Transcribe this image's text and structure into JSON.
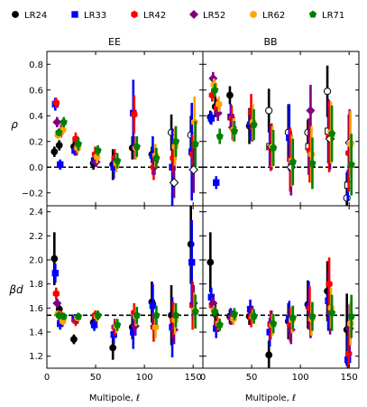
{
  "chart_data": {
    "type": "scatter",
    "x_label": "Multipole, ℓ",
    "x_ticks": [
      0,
      50,
      100,
      150
    ],
    "xlim": [
      0,
      160
    ],
    "legend": {
      "placement": "top",
      "entries": [
        {
          "name": "LR24",
          "color": "#000000",
          "marker": "circle"
        },
        {
          "name": "LR33",
          "color": "#0000ff",
          "marker": "square"
        },
        {
          "name": "LR42",
          "color": "#ff0000",
          "marker": "hexagon"
        },
        {
          "name": "LR52",
          "color": "#800080",
          "marker": "diamond"
        },
        {
          "name": "LR62",
          "color": "#ffa500",
          "marker": "hexagon"
        },
        {
          "name": "LR71",
          "color": "#008000",
          "marker": "pentagon"
        }
      ]
    },
    "columns": [
      "EE",
      "BB"
    ],
    "rows": [
      {
        "y_label": "ρ",
        "ylim": [
          -0.3,
          0.9
        ],
        "y_ticks": [
          "-0.2",
          "0.0",
          "0.2",
          "0.4",
          "0.6",
          "0.8"
        ],
        "reference_line": 0.0
      },
      {
        "y_label": "βd",
        "ylim": [
          1.1,
          2.45
        ],
        "y_ticks": [
          "1.2",
          "1.4",
          "1.6",
          "1.8",
          "2.0",
          "2.2",
          "2.4"
        ],
        "reference_line": 1.54
      }
    ],
    "x_positions": [
      10,
      15,
      30,
      50,
      70,
      90,
      110,
      130,
      150
    ],
    "panels": [
      {
        "panel": "rho-EE",
        "series": [
          {
            "name": "LR24",
            "y": [
              0.12,
              0.17,
              0.16,
              0.03,
              0.02,
              0.15,
              0.1,
              0.27,
              0.25
            ],
            "err": [
              0.04,
              0.04,
              0.05,
              0.05,
              0.12,
              0.09,
              0.06,
              0.14,
              0.15
            ],
            "open": [
              false,
              false,
              false,
              false,
              false,
              false,
              false,
              true,
              true
            ]
          },
          {
            "name": "LR33",
            "y": [
              0.49,
              0.02,
              0.13,
              0.05,
              0.0,
              0.42,
              0.09,
              0.0,
              0.12
            ],
            "err": [
              0.05,
              0.04,
              0.04,
              0.04,
              0.09,
              0.26,
              0.15,
              0.3,
              0.38
            ],
            "open": [
              false,
              false,
              false,
              false,
              false,
              false,
              false,
              false,
              false
            ]
          },
          {
            "name": "LR42",
            "y": [
              0.5,
              0.28,
              0.22,
              0.1,
              0.07,
              0.41,
              0.0,
              0.07,
              0.1
            ],
            "err": [
              0.04,
              0.05,
              0.05,
              0.06,
              0.07,
              0.15,
              0.1,
              0.12,
              0.15
            ],
            "open": [
              false,
              false,
              false,
              false,
              false,
              false,
              false,
              false,
              false
            ]
          },
          {
            "name": "LR52",
            "y": [
              0.35,
              0.29,
              0.14,
              0.04,
              0.05,
              0.15,
              0.04,
              -0.12,
              -0.02
            ],
            "err": [
              0.04,
              0.04,
              0.05,
              0.04,
              0.06,
              0.09,
              0.1,
              0.12,
              0.18
            ],
            "open": [
              false,
              false,
              false,
              false,
              false,
              false,
              false,
              true,
              true
            ]
          },
          {
            "name": "LR62",
            "y": [
              0.25,
              0.29,
              0.15,
              0.08,
              0.03,
              0.15,
              0.09,
              0.16,
              0.35
            ],
            "err": [
              0.03,
              0.04,
              0.04,
              0.05,
              0.07,
              0.09,
              0.09,
              0.15,
              0.2
            ],
            "open": [
              false,
              false,
              false,
              false,
              false,
              false,
              false,
              false,
              false
            ]
          },
          {
            "name": "LR71",
            "y": [
              0.27,
              0.35,
              0.18,
              0.13,
              0.05,
              0.16,
              0.07,
              0.2,
              0.18
            ],
            "err": [
              0.03,
              0.04,
              0.05,
              0.04,
              0.06,
              0.08,
              0.08,
              0.12,
              0.18
            ],
            "open": [
              false,
              false,
              false,
              false,
              false,
              false,
              false,
              false,
              false
            ]
          }
        ]
      },
      {
        "panel": "rho-BB",
        "series": [
          {
            "name": "LR24",
            "y": [
              0.39,
              0.47,
              0.56,
              0.32,
              0.44,
              0.27,
              0.27,
              0.59,
              -0.24
            ],
            "err": [
              0.05,
              0.08,
              0.07,
              0.14,
              0.17,
              0.22,
              0.1,
              0.2,
              0.2
            ],
            "open": [
              false,
              false,
              false,
              false,
              true,
              true,
              true,
              true,
              true
            ]
          },
          {
            "name": "LR33",
            "y": [
              0.38,
              -0.12,
              0.39,
              0.33,
              0.16,
              0.23,
              0.16,
              0.28,
              -0.14
            ],
            "err": [
              0.05,
              0.05,
              0.1,
              0.12,
              0.15,
              0.26,
              0.22,
              0.25,
              0.12
            ],
            "open": [
              false,
              false,
              false,
              false,
              true,
              false,
              true,
              true,
              true
            ]
          },
          {
            "name": "LR42",
            "y": [
              0.56,
              0.46,
              0.38,
              0.43,
              0.15,
              0.06,
              0.13,
              0.24,
              0.11
            ],
            "err": [
              0.05,
              0.07,
              0.1,
              0.14,
              0.18,
              0.25,
              0.25,
              0.28,
              0.3
            ],
            "open": [
              false,
              false,
              false,
              false,
              false,
              false,
              false,
              false,
              false
            ]
          },
          {
            "name": "LR52",
            "y": [
              0.69,
              0.42,
              0.31,
              0.34,
              0.16,
              0.0,
              0.44,
              0.22,
              0.19
            ],
            "err": [
              0.05,
              0.06,
              0.1,
              0.14,
              0.18,
              0.22,
              0.2,
              0.24,
              0.26
            ],
            "open": [
              false,
              false,
              false,
              false,
              true,
              true,
              false,
              true,
              true
            ]
          },
          {
            "name": "LR62",
            "y": [
              0.64,
              0.49,
              0.29,
              0.35,
              0.16,
              0.05,
              0.1,
              0.27,
              0.18
            ],
            "err": [
              0.05,
              0.06,
              0.09,
              0.14,
              0.16,
              0.2,
              0.22,
              0.24,
              0.26
            ],
            "open": [
              false,
              false,
              false,
              false,
              false,
              false,
              false,
              false,
              false
            ]
          },
          {
            "name": "LR71",
            "y": [
              0.6,
              0.24,
              0.28,
              0.33,
              0.15,
              0.04,
              0.03,
              0.26,
              0.02
            ],
            "err": [
              0.05,
              0.06,
              0.08,
              0.12,
              0.14,
              0.18,
              0.2,
              0.22,
              0.24
            ],
            "open": [
              false,
              false,
              false,
              false,
              false,
              false,
              false,
              false,
              false
            ]
          }
        ]
      },
      {
        "panel": "beta-EE",
        "series": [
          {
            "name": "LR24",
            "y": [
              2.01,
              1.59,
              1.34,
              1.48,
              1.27,
              1.44,
              1.65,
              1.54,
              2.13
            ],
            "err": [
              0.22,
              0.06,
              0.04,
              0.05,
              0.1,
              0.1,
              0.17,
              0.25,
              0.33
            ],
            "open": [
              false,
              false,
              false,
              false,
              false,
              false,
              false,
              false,
              false
            ]
          },
          {
            "name": "LR33",
            "y": [
              1.89,
              1.47,
              1.51,
              1.46,
              1.38,
              1.4,
              1.62,
              1.44,
              1.98
            ],
            "err": [
              0.08,
              0.05,
              0.04,
              0.05,
              0.08,
              0.14,
              0.18,
              0.25,
              0.35
            ],
            "open": [
              false,
              false,
              false,
              false,
              false,
              false,
              false,
              false,
              false
            ]
          },
          {
            "name": "LR42",
            "y": [
              1.72,
              1.54,
              1.49,
              1.54,
              1.44,
              1.56,
              1.44,
              1.5,
              1.62
            ],
            "err": [
              0.05,
              0.04,
              0.04,
              0.04,
              0.07,
              0.08,
              0.12,
              0.15,
              0.2
            ],
            "open": [
              false,
              false,
              false,
              false,
              false,
              false,
              false,
              false,
              false
            ]
          },
          {
            "name": "LR52",
            "y": [
              1.64,
              1.5,
              1.51,
              1.52,
              1.45,
              1.45,
              1.45,
              1.42,
              1.64
            ],
            "err": [
              0.04,
              0.04,
              0.04,
              0.04,
              0.06,
              0.08,
              0.1,
              0.12,
              0.15
            ],
            "open": [
              false,
              false,
              false,
              false,
              false,
              false,
              false,
              false,
              false
            ]
          },
          {
            "name": "LR62",
            "y": [
              1.55,
              1.49,
              1.52,
              1.53,
              1.45,
              1.53,
              1.44,
              1.5,
              1.58
            ],
            "err": [
              0.03,
              0.03,
              0.03,
              0.04,
              0.06,
              0.08,
              0.09,
              0.12,
              0.15
            ],
            "open": [
              false,
              false,
              false,
              false,
              false,
              false,
              false,
              false,
              false
            ]
          },
          {
            "name": "LR71",
            "y": [
              1.54,
              1.53,
              1.53,
              1.54,
              1.46,
              1.54,
              1.54,
              1.54,
              1.57
            ],
            "err": [
              0.03,
              0.03,
              0.03,
              0.04,
              0.05,
              0.07,
              0.08,
              0.1,
              0.14
            ],
            "open": [
              false,
              false,
              false,
              false,
              false,
              false,
              false,
              false,
              false
            ]
          }
        ]
      },
      {
        "panel": "beta-BB",
        "series": [
          {
            "name": "LR24",
            "y": [
              1.98,
              1.55,
              1.53,
              1.53,
              1.21,
              1.49,
              1.63,
              1.74,
              1.42
            ],
            "err": [
              0.25,
              0.1,
              0.06,
              0.07,
              0.12,
              0.15,
              0.2,
              0.25,
              0.3
            ],
            "open": [
              false,
              false,
              false,
              false,
              false,
              false,
              false,
              false,
              false
            ]
          },
          {
            "name": "LR33",
            "y": [
              1.69,
              1.43,
              1.53,
              1.59,
              1.4,
              1.51,
              1.62,
              1.66,
              1.17
            ],
            "err": [
              0.08,
              0.08,
              0.07,
              0.08,
              0.12,
              0.15,
              0.2,
              0.25,
              0.2
            ],
            "open": [
              false,
              false,
              false,
              false,
              false,
              false,
              false,
              false,
              false
            ]
          },
          {
            "name": "LR42",
            "y": [
              1.62,
              1.47,
              1.52,
              1.52,
              1.46,
              1.46,
              1.6,
              1.8,
              1.22
            ],
            "err": [
              0.06,
              0.07,
              0.06,
              0.08,
              0.12,
              0.14,
              0.18,
              0.22,
              0.2
            ],
            "open": [
              false,
              false,
              false,
              false,
              false,
              false,
              false,
              false,
              false
            ]
          },
          {
            "name": "LR52",
            "y": [
              1.64,
              1.46,
              1.52,
              1.55,
              1.48,
              1.42,
              1.5,
              1.56,
              1.43
            ],
            "err": [
              0.05,
              0.06,
              0.06,
              0.07,
              0.1,
              0.12,
              0.15,
              0.18,
              0.2
            ],
            "open": [
              false,
              false,
              false,
              false,
              false,
              false,
              false,
              false,
              false
            ]
          },
          {
            "name": "LR62",
            "y": [
              1.58,
              1.47,
              1.51,
              1.53,
              1.46,
              1.5,
              1.51,
              1.6,
              1.47
            ],
            "err": [
              0.04,
              0.05,
              0.05,
              0.06,
              0.09,
              0.11,
              0.14,
              0.17,
              0.18
            ],
            "open": [
              false,
              false,
              false,
              false,
              false,
              false,
              false,
              false,
              false
            ]
          },
          {
            "name": "LR71",
            "y": [
              1.57,
              1.46,
              1.55,
              1.53,
              1.47,
              1.52,
              1.53,
              1.56,
              1.53
            ],
            "err": [
              0.04,
              0.05,
              0.05,
              0.06,
              0.08,
              0.1,
              0.12,
              0.15,
              0.18
            ],
            "open": [
              false,
              false,
              false,
              false,
              false,
              false,
              false,
              false,
              false
            ]
          }
        ]
      }
    ]
  }
}
